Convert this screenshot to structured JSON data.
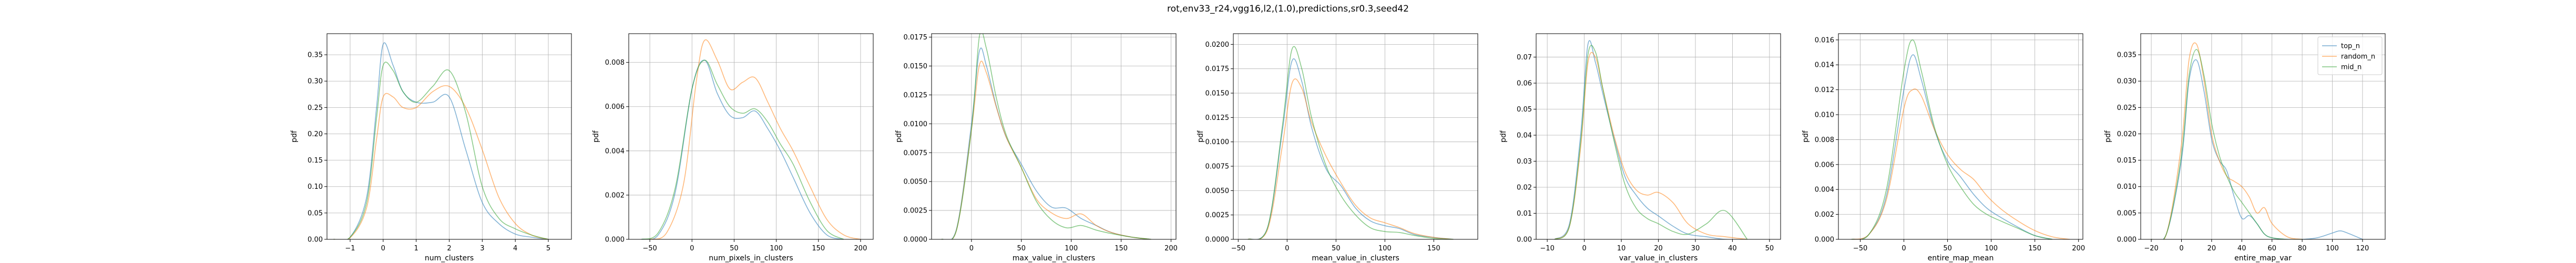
{
  "figure": {
    "title": "rot,env33_r24,vgg16,l2,(1.0),predictions,sr0.3,seed42"
  },
  "colors": {
    "top_n": "#1f77b4",
    "random_n": "#ff7f0e",
    "mid_n": "#2ca02c"
  },
  "legend": {
    "placement": "upper right of last panel",
    "entries": [
      "top_n",
      "random_n",
      "mid_n"
    ]
  },
  "chart_data": [
    {
      "type": "line",
      "xlabel": "num_clusters",
      "ylabel": "pdf",
      "xlim": [
        -1.7,
        5.7
      ],
      "ylim": [
        0,
        0.39
      ],
      "xticks": [
        -1,
        0,
        1,
        2,
        3,
        4,
        5
      ],
      "yticks": [
        0.0,
        0.05,
        0.1,
        0.15,
        0.2,
        0.25,
        0.3,
        0.35
      ],
      "tick_decimals": 2,
      "grid": true,
      "series": [
        {
          "name": "top_n",
          "x": [
            -1.5,
            -1.0,
            -0.5,
            -0.2,
            0.0,
            0.3,
            0.6,
            1.0,
            1.5,
            2.0,
            2.5,
            3.0,
            3.5,
            4.0,
            4.5,
            5.0
          ],
          "y": [
            0.0,
            0.004,
            0.08,
            0.25,
            0.37,
            0.33,
            0.28,
            0.26,
            0.26,
            0.27,
            0.17,
            0.07,
            0.03,
            0.01,
            0.004,
            0.0
          ]
        },
        {
          "name": "random_n",
          "x": [
            -1.5,
            -1.0,
            -0.5,
            -0.2,
            0.0,
            0.3,
            0.6,
            1.0,
            1.5,
            2.0,
            2.5,
            3.0,
            3.5,
            4.0,
            4.5,
            5.0
          ],
          "y": [
            0.0,
            0.003,
            0.06,
            0.19,
            0.27,
            0.27,
            0.25,
            0.25,
            0.28,
            0.29,
            0.25,
            0.17,
            0.08,
            0.03,
            0.008,
            0.0
          ]
        },
        {
          "name": "mid_n",
          "x": [
            -1.5,
            -1.0,
            -0.5,
            -0.2,
            0.0,
            0.3,
            0.6,
            1.0,
            1.5,
            2.0,
            2.5,
            3.0,
            3.5,
            4.0,
            4.5,
            5.0
          ],
          "y": [
            0.0,
            0.004,
            0.07,
            0.23,
            0.33,
            0.32,
            0.28,
            0.26,
            0.29,
            0.32,
            0.24,
            0.1,
            0.04,
            0.02,
            0.008,
            0.0
          ]
        }
      ]
    },
    {
      "type": "line",
      "xlabel": "num_pixels_in_clusters",
      "ylabel": "pdf",
      "xlim": [
        -75,
        215
      ],
      "ylim": [
        0,
        0.0093
      ],
      "xticks": [
        -50,
        0,
        50,
        100,
        150,
        200
      ],
      "yticks": [
        0.0,
        0.002,
        0.004,
        0.006,
        0.008
      ],
      "tick_decimals": 3,
      "grid": true,
      "series": [
        {
          "name": "top_n",
          "x": [
            -60,
            -40,
            -20,
            0,
            15,
            30,
            45,
            60,
            75,
            90,
            105,
            120,
            140,
            160,
            180
          ],
          "y": [
            0.0,
            0.0002,
            0.0021,
            0.0068,
            0.0081,
            0.0066,
            0.0056,
            0.0055,
            0.0058,
            0.005,
            0.004,
            0.0028,
            0.0012,
            0.0002,
            0.0
          ]
        },
        {
          "name": "random_n",
          "x": [
            -50,
            -30,
            -10,
            5,
            15,
            30,
            45,
            60,
            75,
            90,
            105,
            120,
            140,
            160,
            180,
            200
          ],
          "y": [
            0.0,
            0.0003,
            0.0025,
            0.0071,
            0.009,
            0.0081,
            0.0068,
            0.0071,
            0.0073,
            0.0062,
            0.005,
            0.004,
            0.0024,
            0.0009,
            0.0002,
            0.0
          ]
        },
        {
          "name": "mid_n",
          "x": [
            -60,
            -40,
            -20,
            0,
            15,
            30,
            45,
            60,
            75,
            90,
            105,
            120,
            140,
            160,
            180
          ],
          "y": [
            0.0,
            0.0003,
            0.0023,
            0.0068,
            0.0081,
            0.007,
            0.006,
            0.0057,
            0.0059,
            0.0053,
            0.0043,
            0.0034,
            0.0017,
            0.0004,
            0.0
          ]
        }
      ]
    },
    {
      "type": "line",
      "xlabel": "max_value_in_clusters",
      "ylabel": "pdf",
      "xlim": [
        -40,
        205
      ],
      "ylim": [
        0,
        0.0178
      ],
      "xticks": [
        0,
        50,
        100,
        150,
        200
      ],
      "yticks": [
        0.0,
        0.0025,
        0.005,
        0.0075,
        0.01,
        0.0125,
        0.015,
        0.0175
      ],
      "tick_decimals": 4,
      "grid": true,
      "series": [
        {
          "name": "top_n",
          "x": [
            -30,
            -15,
            0,
            8,
            15,
            25,
            35,
            50,
            65,
            80,
            95,
            110,
            125,
            140,
            160,
            180
          ],
          "y": [
            0.0,
            0.0009,
            0.01,
            0.0163,
            0.015,
            0.0115,
            0.0088,
            0.0065,
            0.0042,
            0.0028,
            0.0027,
            0.0018,
            0.0012,
            0.0006,
            0.0002,
            0.0
          ]
        },
        {
          "name": "random_n",
          "x": [
            -30,
            -15,
            0,
            8,
            15,
            25,
            35,
            50,
            65,
            80,
            95,
            110,
            125,
            140,
            160,
            180
          ],
          "y": [
            0.0,
            0.0008,
            0.0095,
            0.0151,
            0.0144,
            0.0114,
            0.0088,
            0.0062,
            0.0035,
            0.0023,
            0.0018,
            0.0022,
            0.0012,
            0.0006,
            0.0002,
            0.0
          ]
        },
        {
          "name": "mid_n",
          "x": [
            -30,
            -15,
            0,
            8,
            15,
            25,
            35,
            50,
            65,
            80,
            95,
            110,
            125,
            140,
            160,
            180
          ],
          "y": [
            0.0,
            0.0008,
            0.0095,
            0.0176,
            0.0165,
            0.0122,
            0.009,
            0.0062,
            0.0033,
            0.0017,
            0.001,
            0.0012,
            0.0008,
            0.0005,
            0.0002,
            0.0
          ]
        }
      ]
    },
    {
      "type": "line",
      "xlabel": "mean_value_in_clusters",
      "ylabel": "pdf",
      "xlim": [
        -55,
        195
      ],
      "ylim": [
        0,
        0.0211
      ],
      "xticks": [
        -50,
        0,
        50,
        100,
        150
      ],
      "yticks": [
        0.0,
        0.0025,
        0.005,
        0.0075,
        0.01,
        0.0125,
        0.015,
        0.0175,
        0.02
      ],
      "tick_decimals": 4,
      "grid": true,
      "series": [
        {
          "name": "top_n",
          "x": [
            -40,
            -20,
            -5,
            5,
            15,
            25,
            40,
            55,
            70,
            85,
            100,
            115,
            130,
            150,
            170
          ],
          "y": [
            0.0,
            0.0012,
            0.011,
            0.0183,
            0.0162,
            0.0115,
            0.0072,
            0.0055,
            0.0032,
            0.0019,
            0.0014,
            0.0011,
            0.0005,
            0.0002,
            0.0
          ]
        },
        {
          "name": "random_n",
          "x": [
            -40,
            -20,
            -5,
            5,
            15,
            25,
            40,
            55,
            70,
            85,
            100,
            115,
            130,
            150,
            170
          ],
          "y": [
            0.0,
            0.001,
            0.0095,
            0.016,
            0.0155,
            0.012,
            0.0085,
            0.0058,
            0.0035,
            0.0022,
            0.0017,
            0.0012,
            0.0006,
            0.0002,
            0.0
          ]
        },
        {
          "name": "mid_n",
          "x": [
            -40,
            -20,
            -5,
            5,
            15,
            25,
            40,
            55,
            70,
            85,
            100,
            115,
            130,
            150,
            170
          ],
          "y": [
            0.0,
            0.0012,
            0.0115,
            0.0195,
            0.0175,
            0.0125,
            0.0075,
            0.0045,
            0.0025,
            0.0012,
            0.0008,
            0.0007,
            0.0004,
            0.0001,
            0.0
          ]
        }
      ]
    },
    {
      "type": "line",
      "xlabel": "var_value_in_clusters",
      "ylabel": "pdf",
      "xlim": [
        -13,
        53
      ],
      "ylim": [
        0,
        0.079
      ],
      "xticks": [
        -10,
        0,
        10,
        20,
        30,
        40,
        50
      ],
      "yticks": [
        0.0,
        0.01,
        0.02,
        0.03,
        0.04,
        0.05,
        0.06,
        0.07
      ],
      "tick_decimals": 2,
      "grid": true,
      "series": [
        {
          "name": "top_n",
          "x": [
            -8,
            -4,
            -1,
            1,
            3,
            5,
            8,
            11,
            14,
            17,
            20,
            24,
            28,
            33,
            38,
            44
          ],
          "y": [
            0.0,
            0.006,
            0.04,
            0.075,
            0.068,
            0.056,
            0.039,
            0.024,
            0.017,
            0.012,
            0.009,
            0.005,
            0.002,
            0.001,
            0.0,
            0.0
          ]
        },
        {
          "name": "random_n",
          "x": [
            -8,
            -4,
            -1,
            1,
            3,
            5,
            8,
            11,
            14,
            17,
            20,
            24,
            28,
            33,
            38,
            44
          ],
          "y": [
            0.0,
            0.005,
            0.035,
            0.068,
            0.07,
            0.058,
            0.04,
            0.026,
            0.019,
            0.017,
            0.018,
            0.014,
            0.006,
            0.002,
            0.001,
            0.0
          ]
        },
        {
          "name": "mid_n",
          "x": [
            -8,
            -4,
            -1,
            1,
            3,
            5,
            8,
            11,
            14,
            17,
            20,
            24,
            28,
            33,
            38,
            44
          ],
          "y": [
            0.0,
            0.005,
            0.037,
            0.071,
            0.072,
            0.058,
            0.038,
            0.021,
            0.012,
            0.008,
            0.006,
            0.003,
            0.002,
            0.006,
            0.011,
            0.0
          ]
        }
      ]
    },
    {
      "type": "line",
      "xlabel": "entire_map_mean",
      "ylabel": "pdf",
      "xlim": [
        -75,
        205
      ],
      "ylim": [
        0,
        0.0165
      ],
      "xticks": [
        -50,
        0,
        50,
        100,
        150,
        200
      ],
      "yticks": [
        0.0,
        0.002,
        0.004,
        0.006,
        0.008,
        0.01,
        0.012,
        0.014,
        0.016
      ],
      "tick_decimals": 3,
      "grid": true,
      "series": [
        {
          "name": "top_n",
          "x": [
            -60,
            -40,
            -20,
            0,
            10,
            20,
            35,
            50,
            65,
            80,
            95,
            110,
            130,
            150,
            170
          ],
          "y": [
            0.0,
            0.0004,
            0.0035,
            0.012,
            0.0148,
            0.0128,
            0.0088,
            0.0063,
            0.005,
            0.0036,
            0.0025,
            0.0018,
            0.001,
            0.0003,
            0.0
          ]
        },
        {
          "name": "random_n",
          "x": [
            -60,
            -40,
            -20,
            0,
            10,
            20,
            35,
            50,
            65,
            80,
            95,
            110,
            130,
            150,
            170,
            190
          ],
          "y": [
            0.0,
            0.0004,
            0.0032,
            0.0105,
            0.012,
            0.0115,
            0.0088,
            0.0068,
            0.0056,
            0.0048,
            0.0035,
            0.0025,
            0.0015,
            0.0007,
            0.0002,
            0.0
          ]
        },
        {
          "name": "mid_n",
          "x": [
            -60,
            -40,
            -20,
            0,
            10,
            20,
            35,
            50,
            65,
            80,
            95,
            110,
            130,
            150,
            170
          ],
          "y": [
            0.0,
            0.0004,
            0.004,
            0.0135,
            0.016,
            0.0135,
            0.009,
            0.006,
            0.0042,
            0.0028,
            0.002,
            0.0015,
            0.0009,
            0.0003,
            0.0
          ]
        }
      ]
    },
    {
      "type": "line",
      "xlabel": "entire_map_var",
      "ylabel": "pdf",
      "xlim": [
        -27,
        135
      ],
      "ylim": [
        0,
        0.039
      ],
      "xticks": [
        -20,
        0,
        20,
        40,
        60,
        80,
        100,
        120
      ],
      "yticks": [
        0.0,
        0.005,
        0.01,
        0.015,
        0.02,
        0.025,
        0.03,
        0.035
      ],
      "tick_decimals": 3,
      "grid": true,
      "series": [
        {
          "name": "top_n",
          "x": [
            -20,
            -10,
            0,
            5,
            10,
            15,
            20,
            25,
            30,
            35,
            40,
            45,
            50,
            55,
            60,
            70,
            80,
            90,
            100,
            105,
            110,
            120
          ],
          "y": [
            0.0,
            0.001,
            0.015,
            0.03,
            0.034,
            0.028,
            0.019,
            0.015,
            0.013,
            0.008,
            0.004,
            0.0045,
            0.003,
            0.001,
            0.0003,
            0.0,
            0.0,
            0.0003,
            0.0012,
            0.0016,
            0.0012,
            0.0
          ]
        },
        {
          "name": "random_n",
          "x": [
            -20,
            -10,
            0,
            5,
            10,
            15,
            20,
            25,
            30,
            35,
            40,
            45,
            50,
            55,
            60,
            70,
            80
          ],
          "y": [
            0.0,
            0.001,
            0.018,
            0.034,
            0.037,
            0.03,
            0.02,
            0.015,
            0.012,
            0.011,
            0.01,
            0.008,
            0.005,
            0.006,
            0.003,
            0.0005,
            0.0
          ]
        },
        {
          "name": "mid_n",
          "x": [
            -20,
            -10,
            0,
            5,
            10,
            15,
            20,
            25,
            30,
            35,
            40,
            45,
            50,
            55,
            60,
            70,
            80
          ],
          "y": [
            0.0,
            0.001,
            0.016,
            0.031,
            0.036,
            0.031,
            0.022,
            0.016,
            0.012,
            0.009,
            0.007,
            0.005,
            0.003,
            0.001,
            0.0003,
            0.0,
            0.0
          ]
        }
      ]
    }
  ]
}
